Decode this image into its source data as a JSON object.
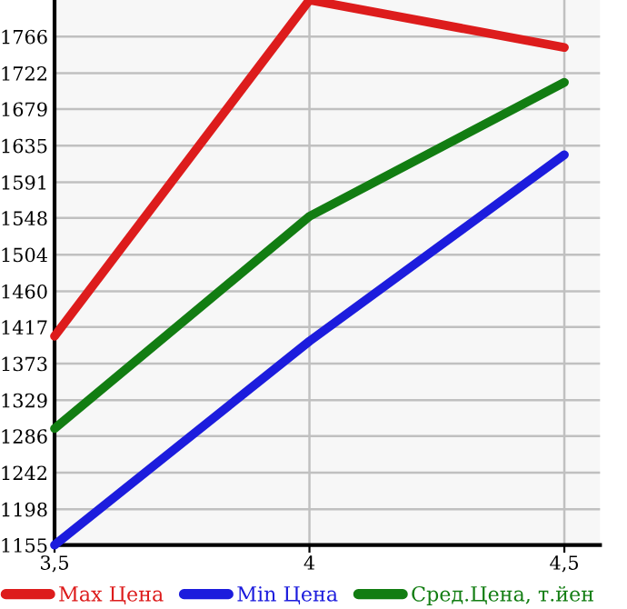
{
  "chart_data": {
    "type": "line",
    "x": [
      3.5,
      4,
      4.5
    ],
    "series": [
      {
        "name": "Max Цена",
        "color": "#dd1c1c",
        "values": [
          1406,
          1810,
          1753
        ]
      },
      {
        "name": "Min Цена",
        "color": "#1c1cdd",
        "values": [
          1155,
          1400,
          1624
        ]
      },
      {
        "name": "Сред.Цена, т.йен",
        "color": "#127d12",
        "values": [
          1295,
          1550,
          1711
        ]
      }
    ],
    "xlim": [
      3.5,
      4.57
    ],
    "xticks": [
      {
        "value": 3.5,
        "label": "3,5"
      },
      4,
      {
        "value": 4.5,
        "label": "4,5"
      }
    ],
    "ylim": [
      1155,
      1810
    ],
    "yticks": [
      1155,
      1198,
      1242,
      1286,
      1329,
      1373,
      1417,
      1460,
      1504,
      1548,
      1591,
      1635,
      1679,
      1722,
      1766
    ],
    "grid": true,
    "legend": "bottom",
    "marker": "none",
    "line_style": "solid"
  }
}
